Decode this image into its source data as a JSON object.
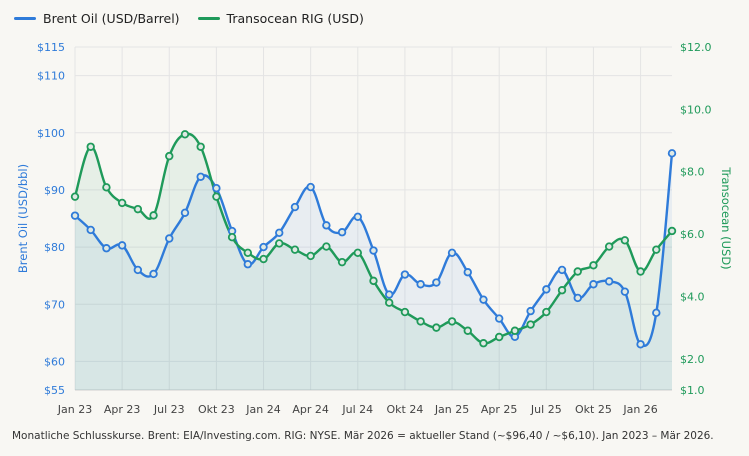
{
  "legend": {
    "brent": "Brent Oil (USD/Barrel)",
    "rig": "Transocean RIG (USD)"
  },
  "caption": "Monatliche Schlusskurse. Brent: EIA/Investing.com. RIG: NYSE. Mär 2026 = aktueller Stand (~$96,40 / ~$6,10). Jan 2023 – Mär 2026.",
  "colors": {
    "brent": "#2f7bd9",
    "rig": "#1f9a5a",
    "grid": "#e4e4e4",
    "text": "#555555"
  },
  "chart_data": {
    "type": "line",
    "title": "",
    "xlabel": "",
    "ylabel": "Brent Oil (USD/bbl)",
    "y2label": "Transocean (USD)",
    "ylim": [
      55,
      115
    ],
    "y2lim": [
      1.0,
      12.0
    ],
    "grid": true,
    "legend_position": "top-left",
    "x": [
      "2023-01",
      "2023-02",
      "2023-03",
      "2023-04",
      "2023-05",
      "2023-06",
      "2023-07",
      "2023-08",
      "2023-09",
      "2023-10",
      "2023-11",
      "2023-12",
      "2024-01",
      "2024-02",
      "2024-03",
      "2024-04",
      "2024-05",
      "2024-06",
      "2024-07",
      "2024-08",
      "2024-09",
      "2024-10",
      "2024-11",
      "2024-12",
      "2025-01",
      "2025-02",
      "2025-03",
      "2025-04",
      "2025-05",
      "2025-06",
      "2025-07",
      "2025-08",
      "2025-09",
      "2025-10",
      "2025-11",
      "2025-12",
      "2026-01",
      "2026-02",
      "2026-03"
    ],
    "x_tick_labels": [
      "Jan 23",
      "Apr 23",
      "Jul 23",
      "Okt 23",
      "Jan 24",
      "Apr 24",
      "Jul 24",
      "Okt 24",
      "Jan 25",
      "Apr 25",
      "Jul 25",
      "Okt 25",
      "Jan 26"
    ],
    "y_ticks": [
      "$55",
      "$60",
      "$70",
      "$80",
      "$90",
      "$100",
      "$110",
      "$115"
    ],
    "y_tick_values": [
      55,
      60,
      70,
      80,
      90,
      100,
      110,
      115
    ],
    "y2_ticks": [
      "$1.0",
      "$2.0",
      "$4.0",
      "$6.0",
      "$8.0",
      "$10.0",
      "$12.0"
    ],
    "y2_tick_values": [
      1.0,
      2.0,
      4.0,
      6.0,
      8.0,
      10.0,
      12.0
    ],
    "series": [
      {
        "name": "Brent Oil (USD/Barrel)",
        "axis": "left",
        "values": [
          85.5,
          83.0,
          79.8,
          80.3,
          76.0,
          75.3,
          81.5,
          86.0,
          92.3,
          90.3,
          82.8,
          77.0,
          80.0,
          82.5,
          87.0,
          90.5,
          83.8,
          82.6,
          85.3,
          79.4,
          71.7,
          75.2,
          73.5,
          73.8,
          79.0,
          75.6,
          70.8,
          67.5,
          64.3,
          68.8,
          72.6,
          76.0,
          71.1,
          73.5,
          74.0,
          72.2,
          63.0,
          68.5,
          96.4
        ]
      },
      {
        "name": "Transocean RIG (USD)",
        "axis": "right",
        "values": [
          7.2,
          8.8,
          7.5,
          7.0,
          6.8,
          6.6,
          8.5,
          9.2,
          8.8,
          7.2,
          5.9,
          5.4,
          5.2,
          5.7,
          5.5,
          5.3,
          5.6,
          5.1,
          5.4,
          4.5,
          3.8,
          3.5,
          3.2,
          3.0,
          3.2,
          2.9,
          2.5,
          2.7,
          2.9,
          3.1,
          3.5,
          4.2,
          4.8,
          5.0,
          5.6,
          5.8,
          4.8,
          5.5,
          6.1
        ]
      }
    ]
  }
}
